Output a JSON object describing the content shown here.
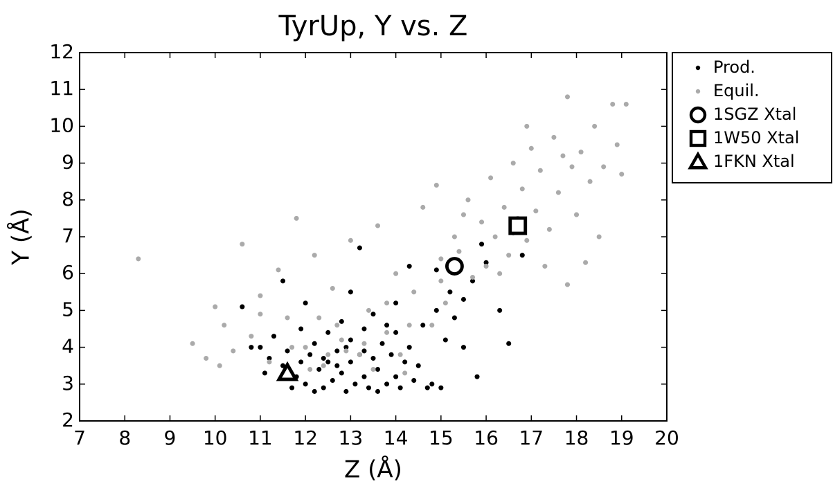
{
  "chart_data": {
    "type": "scatter",
    "title": "TyrUp, Y vs. Z",
    "xlabel": "Z (Å)",
    "ylabel": "Y (Å)",
    "xlim": [
      7,
      20
    ],
    "ylim": [
      2,
      12
    ],
    "xticks": [
      7,
      8,
      9,
      10,
      11,
      12,
      13,
      14,
      15,
      16,
      17,
      18,
      19,
      20
    ],
    "yticks": [
      2,
      3,
      4,
      5,
      6,
      7,
      8,
      9,
      10,
      11,
      12
    ],
    "legend": "outside right",
    "series": [
      {
        "name": "Prod.",
        "color": "#000000",
        "marker": "dot",
        "x": [
          11.0,
          11.2,
          11.3,
          11.5,
          11.6,
          11.8,
          11.9,
          12.0,
          12.1,
          12.2,
          12.3,
          12.4,
          12.5,
          12.5,
          12.6,
          12.7,
          12.8,
          12.8,
          12.9,
          13.0,
          13.0,
          13.1,
          13.2,
          13.3,
          13.3,
          13.4,
          13.5,
          13.5,
          13.6,
          13.7,
          13.8,
          13.9,
          14.0,
          14.0,
          14.1,
          14.2,
          14.3,
          14.4,
          14.5,
          14.6,
          14.8,
          14.9,
          15.0,
          15.1,
          15.2,
          15.3,
          15.5,
          15.7,
          15.8,
          16.0,
          16.3,
          16.5,
          16.8,
          14.3,
          13.0,
          12.0,
          11.5,
          10.6,
          10.8,
          11.1,
          11.7,
          12.2,
          13.6,
          14.7,
          14.0,
          15.5,
          13.2,
          14.9,
          15.9,
          12.7,
          13.3,
          12.4,
          12.9,
          13.8,
          11.9
        ],
        "y": [
          4.0,
          3.7,
          4.3,
          3.5,
          3.9,
          3.2,
          4.5,
          3.0,
          3.8,
          4.1,
          3.4,
          2.9,
          3.6,
          4.4,
          3.1,
          3.9,
          3.3,
          4.7,
          2.8,
          3.6,
          4.2,
          3.0,
          3.8,
          4.5,
          3.2,
          2.9,
          3.7,
          4.9,
          3.4,
          4.1,
          3.0,
          3.8,
          4.4,
          3.2,
          2.9,
          3.6,
          4.0,
          3.1,
          3.5,
          4.6,
          3.0,
          5.0,
          2.9,
          4.2,
          5.5,
          4.8,
          5.3,
          5.8,
          3.2,
          6.3,
          5.0,
          4.1,
          6.5,
          6.2,
          5.5,
          5.2,
          5.8,
          5.1,
          4.0,
          3.3,
          2.9,
          2.8,
          2.8,
          2.9,
          5.2,
          4.0,
          6.7,
          6.1,
          6.8,
          3.5,
          3.9,
          3.7,
          4.0,
          4.6,
          3.6
        ]
      },
      {
        "name": "Equil.",
        "color": "#aaaaaa",
        "marker": "dot",
        "x": [
          9.5,
          9.8,
          10.0,
          10.2,
          10.4,
          10.6,
          10.8,
          11.0,
          11.2,
          11.4,
          11.6,
          11.8,
          12.0,
          12.2,
          12.4,
          12.6,
          12.8,
          13.0,
          13.2,
          13.4,
          13.6,
          13.8,
          14.0,
          14.2,
          14.4,
          14.6,
          14.8,
          15.0,
          15.1,
          15.3,
          15.4,
          15.6,
          15.7,
          15.9,
          16.0,
          16.1,
          16.2,
          16.4,
          16.5,
          16.6,
          16.7,
          16.8,
          16.9,
          17.0,
          17.1,
          17.2,
          17.4,
          17.5,
          17.6,
          17.8,
          17.9,
          18.0,
          18.1,
          18.3,
          18.4,
          18.6,
          18.8,
          18.9,
          19.1,
          19.0,
          18.5,
          18.2,
          17.8,
          17.3,
          8.3,
          12.9,
          12.5,
          13.3,
          12.1,
          11.7,
          14.3,
          15.0,
          16.3,
          13.8,
          12.3,
          10.1,
          15.5,
          16.9,
          17.7,
          14.9,
          11.0,
          13.5,
          14.1,
          12.7,
          16.6
        ],
        "y": [
          4.1,
          3.7,
          5.1,
          4.6,
          3.9,
          6.8,
          4.3,
          5.4,
          3.6,
          6.1,
          4.8,
          7.5,
          4.0,
          6.5,
          3.5,
          5.6,
          4.2,
          6.9,
          3.8,
          5.0,
          7.3,
          4.4,
          6.0,
          3.3,
          5.5,
          7.8,
          4.6,
          6.4,
          5.2,
          7.0,
          6.6,
          8.0,
          5.9,
          7.4,
          6.2,
          8.6,
          7.0,
          7.8,
          6.5,
          9.0,
          7.5,
          8.3,
          6.9,
          9.4,
          7.7,
          8.8,
          7.2,
          9.7,
          8.2,
          10.8,
          8.9,
          7.6,
          9.3,
          8.5,
          10.0,
          8.9,
          10.6,
          9.5,
          10.6,
          8.7,
          7.0,
          6.3,
          5.7,
          6.2,
          6.4,
          3.9,
          3.8,
          4.1,
          3.4,
          4.0,
          4.6,
          5.8,
          6.0,
          5.2,
          4.8,
          3.5,
          7.6,
          10.0,
          9.2,
          8.4,
          4.9,
          3.4,
          3.8,
          4.6,
          7.1
        ]
      },
      {
        "name": "1SGZ Xtal",
        "color": "#000000",
        "marker": "circle",
        "x": [
          15.3
        ],
        "y": [
          6.2
        ]
      },
      {
        "name": "1W50 Xtal",
        "color": "#000000",
        "marker": "square",
        "x": [
          16.7
        ],
        "y": [
          7.3
        ]
      },
      {
        "name": "1FKN Xtal",
        "color": "#000000",
        "marker": "triangle",
        "x": [
          11.6
        ],
        "y": [
          3.3
        ]
      }
    ]
  }
}
